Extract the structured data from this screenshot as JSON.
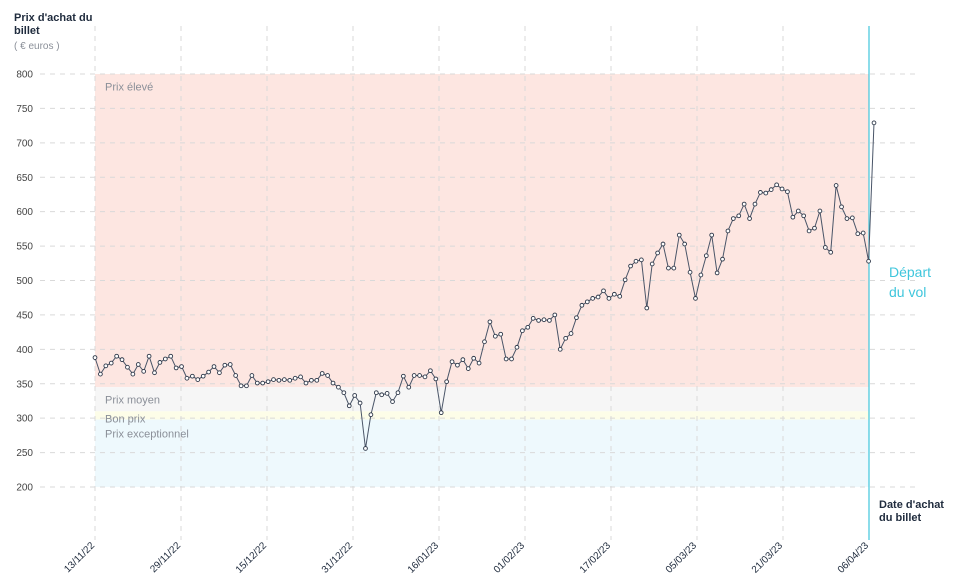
{
  "chart_data": {
    "type": "line",
    "ylabel": "Prix d'achat du billet",
    "yunit": "( € euros )",
    "xlabel": "Date d'achat du billet",
    "ylim": [
      200,
      800
    ],
    "yticks": [
      200,
      250,
      300,
      350,
      400,
      450,
      500,
      550,
      600,
      650,
      700,
      750,
      800
    ],
    "xticks": [
      "13/11/22",
      "29/11/22",
      "15/12/22",
      "31/12/22",
      "16/01/23",
      "01/02/23",
      "17/02/23",
      "05/03/23",
      "21/03/23",
      "06/04/23"
    ],
    "x_start": "13/11/22",
    "x_end": "06/04/23",
    "grid": true,
    "bands": [
      {
        "name": "Prix élevé",
        "from": 345,
        "to": 800,
        "color": "#fde6e1"
      },
      {
        "name": "Prix moyen",
        "from": 310,
        "to": 345,
        "color": "#f6f6f6"
      },
      {
        "name": "Bon prix",
        "from": 298,
        "to": 310,
        "color": "#fdfde8"
      },
      {
        "name": "Prix exceptionnel",
        "from": 200,
        "to": 298,
        "color": "#eef9fd"
      }
    ],
    "annotation": {
      "text": "Départ du vol",
      "color": "#3fc6dc"
    },
    "series": [
      {
        "line_color": "#4a5568",
        "values": [
          388,
          364,
          376,
          380,
          390,
          385,
          374,
          364,
          378,
          368,
          390,
          366,
          381,
          386,
          390,
          373,
          375,
          358,
          361,
          356,
          361,
          367,
          375,
          366,
          377,
          378,
          362,
          347,
          347,
          362,
          351,
          351,
          353,
          356,
          355,
          356,
          355,
          358,
          360,
          351,
          355,
          355,
          365,
          362,
          351,
          345,
          337,
          318,
          333,
          322,
          256,
          305,
          337,
          334,
          336,
          324,
          337,
          361,
          345,
          362,
          362,
          360,
          369,
          357,
          308,
          353,
          382,
          377,
          385,
          372,
          387,
          380,
          411,
          440,
          419,
          422,
          386,
          386,
          403,
          427,
          432,
          445,
          442,
          443,
          442,
          450,
          400,
          416,
          423,
          446,
          464,
          469,
          474,
          476,
          485,
          474,
          480,
          477,
          501,
          521,
          528,
          530,
          460,
          524,
          540,
          553,
          518,
          518,
          566,
          553,
          512,
          474,
          508,
          536,
          566,
          511,
          531,
          572,
          590,
          594,
          611,
          590,
          611,
          628,
          627,
          632,
          639,
          633,
          629,
          592,
          601,
          594,
          572,
          576,
          601,
          548,
          541,
          638,
          607,
          590,
          591,
          568,
          569,
          528,
          729
        ]
      }
    ]
  }
}
